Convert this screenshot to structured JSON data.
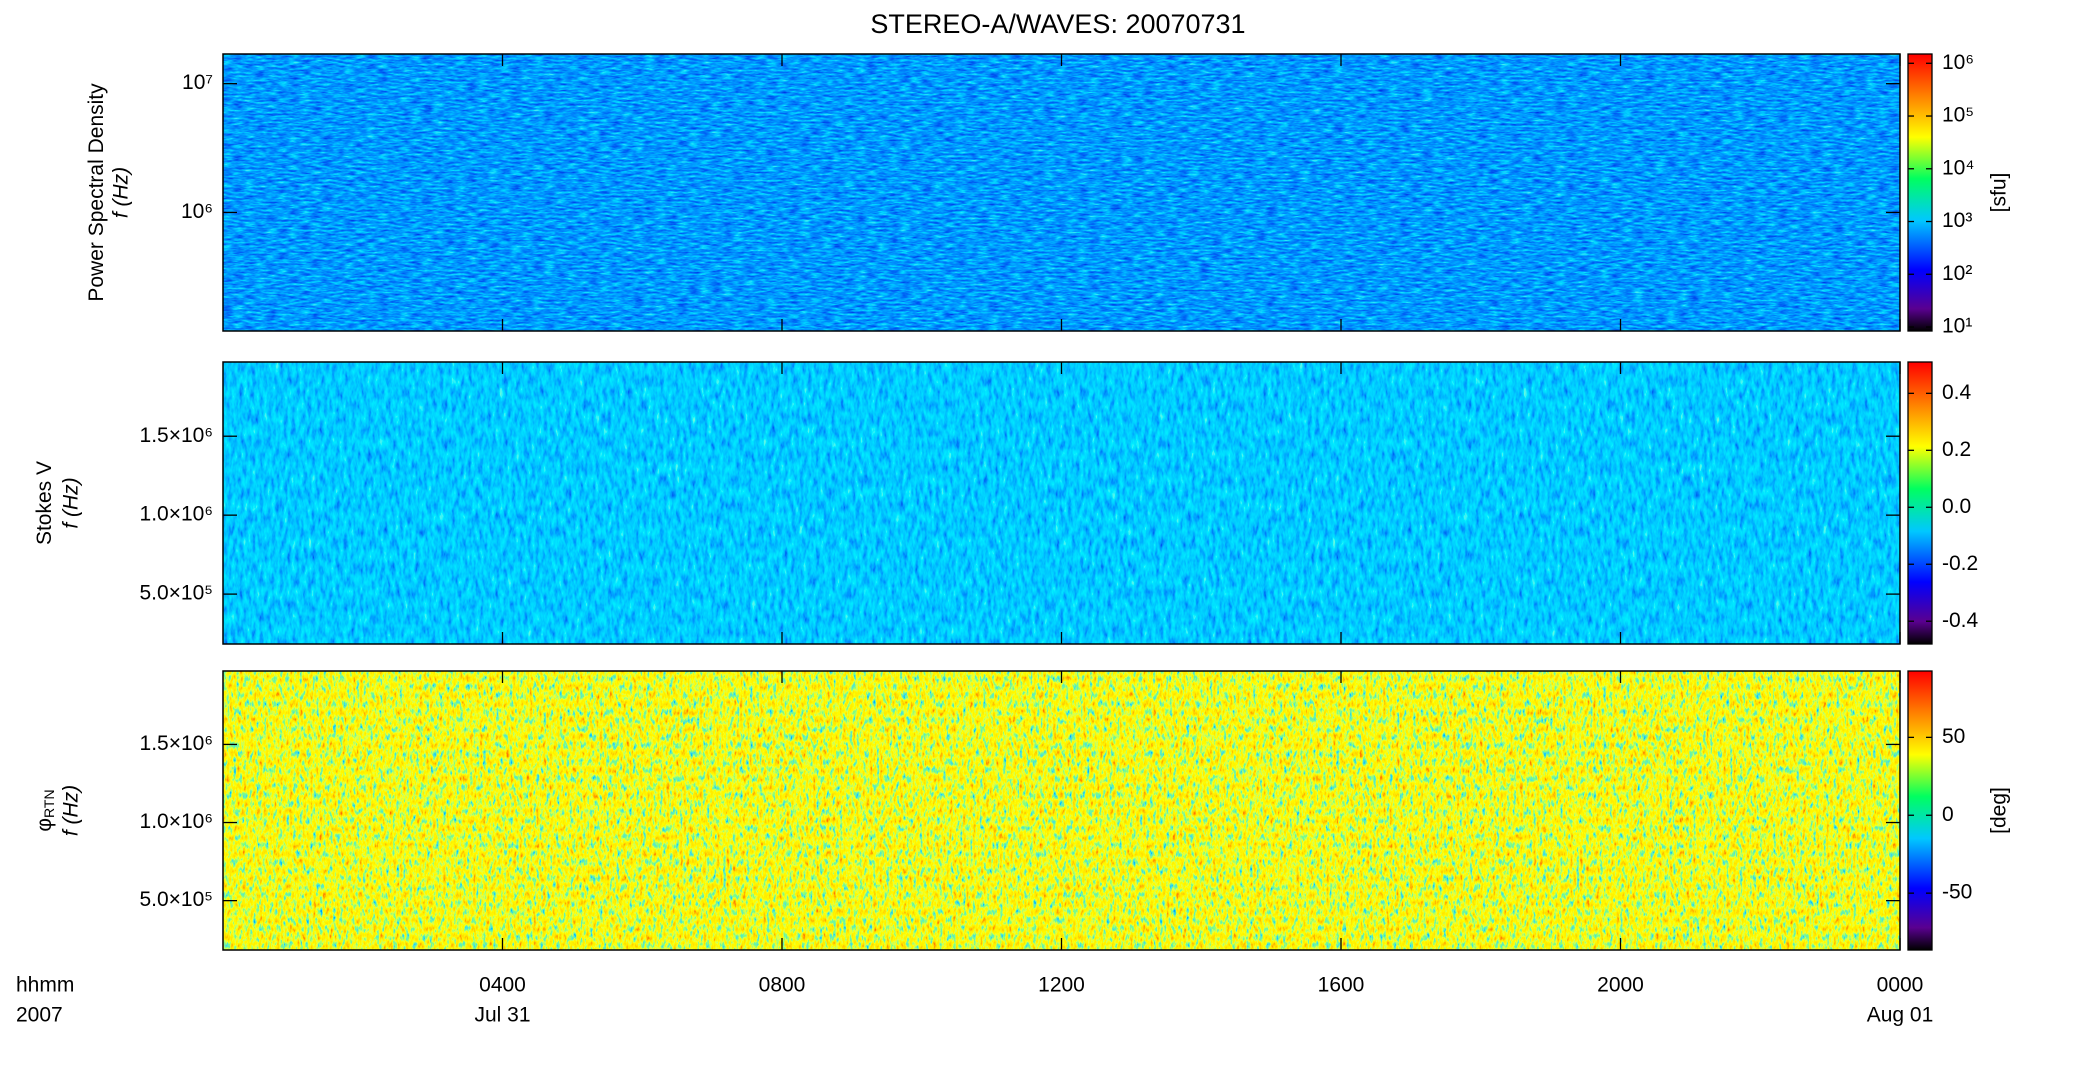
{
  "title": "STEREO-A/WAVES: 20070731",
  "x_axis": {
    "label": "hhmm",
    "year": "2007",
    "xlim": [
      0,
      24
    ],
    "xticks": [
      {
        "value": 4,
        "label": "0400"
      },
      {
        "value": 8,
        "label": "0800"
      },
      {
        "value": 12,
        "label": "1200"
      },
      {
        "value": 16,
        "label": "1600"
      },
      {
        "value": 20,
        "label": "2000"
      },
      {
        "value": 24,
        "label": "0000"
      }
    ],
    "date_ticks": [
      {
        "value": 4,
        "label": "Jul 31"
      },
      {
        "value": 24,
        "label": "Aug 01"
      }
    ]
  },
  "chart_data": [
    {
      "type": "heatmap",
      "ylabel": "Power Spectral Density",
      "ylabel2": "f (Hz)",
      "ylog": true,
      "ylim": [
        120000,
        17000000
      ],
      "yticks": [
        {
          "value": 1000000,
          "label": "10⁶"
        },
        {
          "value": 10000000,
          "label": "10⁷"
        }
      ],
      "colorbar": {
        "label": "[sfu]",
        "log": true,
        "clim": [
          8.4,
          1500000
        ],
        "cticks": [
          {
            "value": 10,
            "label": "10¹"
          },
          {
            "value": 100,
            "label": "10²"
          },
          {
            "value": 1000,
            "label": "10³"
          },
          {
            "value": 10000,
            "label": "10⁴"
          },
          {
            "value": 100000,
            "label": "10⁵"
          },
          {
            "value": 1000000,
            "label": "10⁶"
          }
        ]
      }
    },
    {
      "type": "heatmap",
      "ylabel": "Stokes V",
      "ylabel2": "f (Hz)",
      "ylog": false,
      "ylim": [
        184000,
        1970000
      ],
      "yticks": [
        {
          "value": 500000,
          "label": "5.0×10⁵"
        },
        {
          "value": 1000000,
          "label": "1.0×10⁶"
        },
        {
          "value": 1500000,
          "label": "1.5×10⁶"
        }
      ],
      "colorbar": {
        "log": false,
        "clim": [
          -0.48,
          0.51
        ],
        "cticks": [
          -0.4,
          -0.2,
          {
            "value": 0,
            "label": "0.0"
          },
          0.2,
          0.4
        ]
      }
    },
    {
      "type": "heatmap",
      "ylabel": "φ",
      "ylabel_sub": "RTN",
      "ylabel2": "f (Hz)",
      "ylog": false,
      "ylim": [
        184000,
        1970000
      ],
      "yticks": [
        {
          "value": 500000,
          "label": "5.0×10⁵"
        },
        {
          "value": 1000000,
          "label": "1.0×10⁶"
        },
        {
          "value": 1500000,
          "label": "1.5×10⁶"
        }
      ],
      "colorbar": {
        "label": "[deg]",
        "log": false,
        "clim": [
          -86.5,
          92.6
        ],
        "cticks": [
          -50,
          0,
          50
        ]
      }
    }
  ]
}
